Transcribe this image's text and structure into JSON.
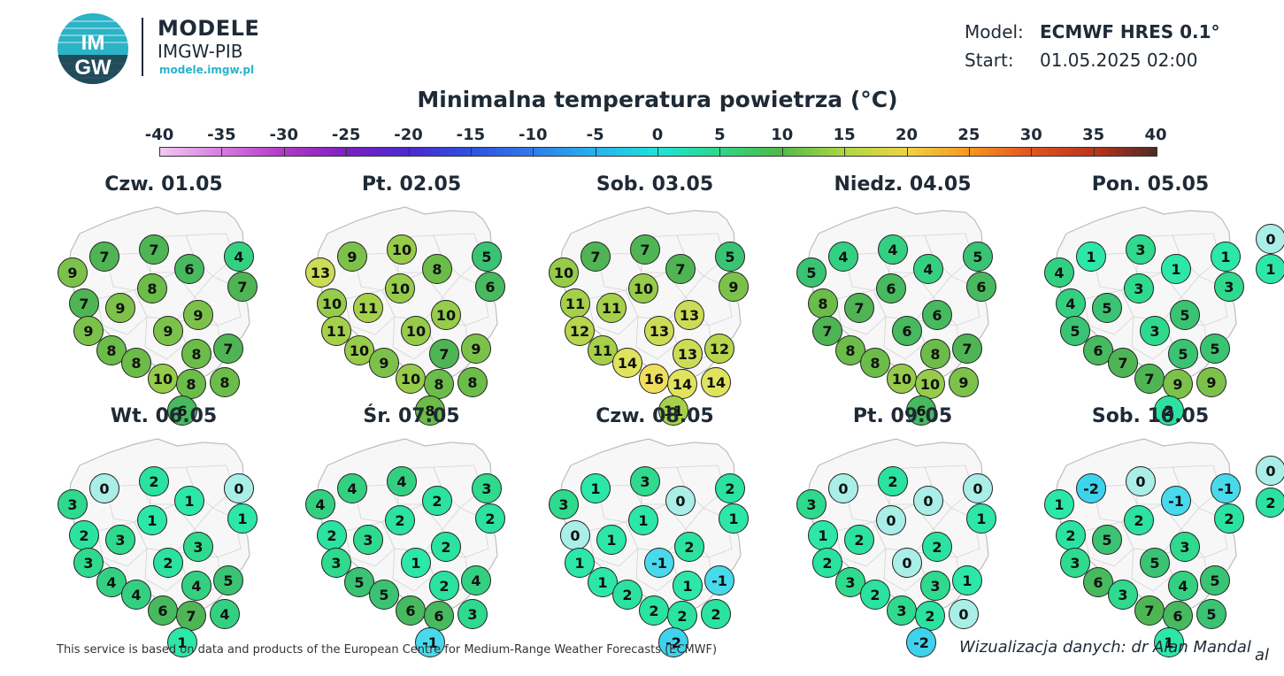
{
  "brand": {
    "logo_text_top": "IM",
    "logo_text_bottom": "GW",
    "title": "MODELE",
    "subtitle": "IMGW-PIB",
    "url": "modele.imgw.pl"
  },
  "meta": {
    "model_label": "Model:",
    "model_value": "ECMWF HRES 0.1°",
    "start_label": "Start:",
    "start_value": "01.05.2025 02:00"
  },
  "map_title": "Minimalna temperatura powietrza (°C)",
  "colorbar": {
    "labels": [
      "-40",
      "-35",
      "-30",
      "-25",
      "-20",
      "-15",
      "-10",
      "-5",
      "0",
      "5",
      "10",
      "15",
      "20",
      "25",
      "30",
      "35",
      "40"
    ],
    "min": -40,
    "max": 40
  },
  "panels": [
    {
      "day": "Czw. 01.05",
      "values": [
        "9",
        "7",
        "7",
        "6",
        "4",
        "7",
        "8",
        "7",
        "9",
        "9",
        "9",
        "9",
        "8",
        "7",
        "8",
        "8",
        "10",
        "8",
        "8",
        "6"
      ]
    },
    {
      "day": "Pt. 02.05",
      "values": [
        "13",
        "9",
        "10",
        "8",
        "5",
        "6",
        "10",
        "10",
        "11",
        "10",
        "11",
        "10",
        "10",
        "9",
        "9",
        "7",
        "10",
        "8",
        "8",
        "8"
      ]
    },
    {
      "day": "Sob. 03.05",
      "values": [
        "10",
        "7",
        "7",
        "7",
        "5",
        "9",
        "10",
        "11",
        "11",
        "13",
        "12",
        "13",
        "11",
        "12",
        "14",
        "13",
        "16",
        "14",
        "14",
        "11"
      ]
    },
    {
      "day": "Niedz. 04.05",
      "values": [
        "5",
        "4",
        "4",
        "4",
        "5",
        "6",
        "6",
        "8",
        "7",
        "6",
        "7",
        "6",
        "8",
        "7",
        "8",
        "8",
        "10",
        "10",
        "9",
        "6"
      ]
    },
    {
      "day": "Pon. 05.05",
      "values": [
        "4",
        "1",
        "3",
        "1",
        "1",
        "3",
        "3",
        "4",
        "5",
        "5",
        "5",
        "3",
        "6",
        "5",
        "7",
        "5",
        "7",
        "9",
        "9",
        "2"
      ]
    },
    {
      "day": "Wt. 06.05",
      "values": [
        "3",
        "0",
        "2",
        "1",
        "0",
        "1",
        "1",
        "2",
        "3",
        "3",
        "3",
        "2",
        "4",
        "5",
        "4",
        "4",
        "6",
        "7",
        "4",
        "1"
      ]
    },
    {
      "day": "Śr. 07.05",
      "values": [
        "4",
        "4",
        "4",
        "2",
        "3",
        "2",
        "2",
        "2",
        "3",
        "2",
        "3",
        "1",
        "5",
        "4",
        "5",
        "2",
        "6",
        "6",
        "3",
        "-1"
      ]
    },
    {
      "day": "Czw. 08.05",
      "values": [
        "3",
        "1",
        "3",
        "0",
        "2",
        "1",
        "1",
        "0",
        "1",
        "2",
        "1",
        "-1",
        "1",
        "-1",
        "2",
        "1",
        "2",
        "2",
        "2",
        "-2"
      ]
    },
    {
      "day": "Pt. 09.05",
      "values": [
        "3",
        "0",
        "2",
        "0",
        "0",
        "1",
        "0",
        "1",
        "2",
        "2",
        "2",
        "0",
        "3",
        "1",
        "2",
        "3",
        "3",
        "2",
        "0",
        "-2"
      ]
    },
    {
      "day": "Sob. 10.05",
      "values": [
        "1",
        "-2",
        "0",
        "-1",
        "-1",
        "2",
        "2",
        "2",
        "5",
        "3",
        "3",
        "5",
        "6",
        "5",
        "3",
        "4",
        "7",
        "6",
        "5",
        "1"
      ]
    }
  ],
  "cut_values": [
    "0",
    "1",
    "0",
    "2"
  ],
  "bubble_colors": {
    "-2": "#3fd2ec",
    "-1": "#49d9ec",
    "0": "#a9eee7",
    "1": "#2ce7a8",
    "2": "#2be2a0",
    "3": "#2fd98d",
    "4": "#34d081",
    "5": "#3ac373",
    "6": "#47b95e",
    "7": "#4fb554",
    "8": "#6bbc49",
    "9": "#7cc24a",
    "10": "#96cc49",
    "11": "#a5d14a",
    "12": "#b7d54d",
    "13": "#cddc56",
    "14": "#e0e35e",
    "16": "#f0df5c"
  },
  "footer": "This service is based on data and products of the European Centre for Medium-Range Weather Forecasts (ECMWF)",
  "credit": "Wizualizacja danych: dr Alan Mandal",
  "credit_cut": "al"
}
